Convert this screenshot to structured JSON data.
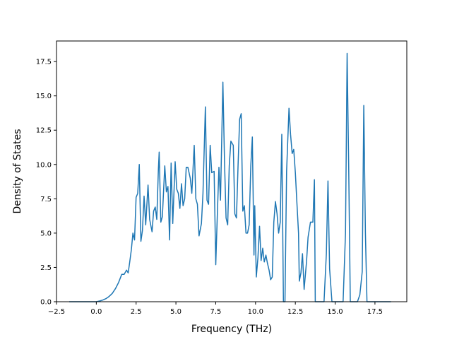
{
  "chart_data": {
    "type": "line",
    "title": "",
    "xlabel": "Frequency (THz)",
    "ylabel": "Density of States",
    "xlim": [
      -2.5,
      19.5
    ],
    "ylim": [
      0,
      19.0
    ],
    "grid": false,
    "x_ticks": [
      -2.5,
      0.0,
      2.5,
      5.0,
      7.5,
      10.0,
      12.5,
      15.0,
      17.5
    ],
    "x_tick_labels": [
      "−2.5",
      "0.0",
      "2.5",
      "5.0",
      "7.5",
      "10.0",
      "12.5",
      "15.0",
      "17.5"
    ],
    "y_ticks": [
      0.0,
      2.5,
      5.0,
      7.5,
      10.0,
      12.5,
      15.0,
      17.5
    ],
    "y_tick_labels": [
      "0.0",
      "2.5",
      "5.0",
      "7.5",
      "10.0",
      "12.5",
      "15.0",
      "17.5"
    ],
    "series": [
      {
        "color": "#1f77b4",
        "points": [
          [
            -1.7,
            0.0
          ],
          [
            -1.0,
            0.0
          ],
          [
            -0.5,
            0.0
          ],
          [
            0.0,
            0.0
          ],
          [
            0.2,
            0.05
          ],
          [
            0.4,
            0.12
          ],
          [
            0.6,
            0.22
          ],
          [
            0.8,
            0.38
          ],
          [
            1.0,
            0.6
          ],
          [
            1.2,
            0.95
          ],
          [
            1.4,
            1.4
          ],
          [
            1.6,
            2.0
          ],
          [
            1.75,
            2.0
          ],
          [
            1.9,
            2.3
          ],
          [
            2.0,
            2.1
          ],
          [
            2.1,
            2.9
          ],
          [
            2.2,
            3.8
          ],
          [
            2.3,
            5.0
          ],
          [
            2.4,
            4.5
          ],
          [
            2.5,
            7.6
          ],
          [
            2.6,
            7.9
          ],
          [
            2.7,
            10.0
          ],
          [
            2.8,
            4.4
          ],
          [
            2.9,
            5.2
          ],
          [
            3.0,
            7.7
          ],
          [
            3.1,
            5.6
          ],
          [
            3.25,
            8.5
          ],
          [
            3.35,
            6.0
          ],
          [
            3.5,
            5.1
          ],
          [
            3.6,
            6.6
          ],
          [
            3.7,
            6.9
          ],
          [
            3.8,
            6.0
          ],
          [
            3.9,
            9.7
          ],
          [
            3.95,
            10.9
          ],
          [
            4.05,
            5.8
          ],
          [
            4.15,
            6.2
          ],
          [
            4.3,
            9.9
          ],
          [
            4.4,
            8.0
          ],
          [
            4.5,
            8.4
          ],
          [
            4.6,
            4.5
          ],
          [
            4.7,
            10.1
          ],
          [
            4.8,
            5.7
          ],
          [
            4.95,
            10.2
          ],
          [
            5.05,
            8.2
          ],
          [
            5.15,
            7.9
          ],
          [
            5.25,
            6.8
          ],
          [
            5.35,
            8.6
          ],
          [
            5.45,
            7.0
          ],
          [
            5.55,
            7.5
          ],
          [
            5.65,
            9.8
          ],
          [
            5.75,
            9.8
          ],
          [
            5.9,
            9.0
          ],
          [
            6.0,
            7.9
          ],
          [
            6.15,
            11.4
          ],
          [
            6.25,
            7.5
          ],
          [
            6.35,
            7.1
          ],
          [
            6.45,
            4.8
          ],
          [
            6.6,
            5.7
          ],
          [
            6.7,
            7.9
          ],
          [
            6.85,
            14.2
          ],
          [
            6.95,
            7.4
          ],
          [
            7.05,
            7.1
          ],
          [
            7.15,
            11.4
          ],
          [
            7.25,
            9.4
          ],
          [
            7.4,
            9.5
          ],
          [
            7.5,
            2.7
          ],
          [
            7.6,
            6.3
          ],
          [
            7.7,
            9.8
          ],
          [
            7.8,
            7.4
          ],
          [
            7.95,
            16.0
          ],
          [
            8.05,
            10.2
          ],
          [
            8.15,
            6.1
          ],
          [
            8.25,
            5.6
          ],
          [
            8.35,
            9.9
          ],
          [
            8.45,
            11.7
          ],
          [
            8.6,
            11.4
          ],
          [
            8.7,
            6.4
          ],
          [
            8.8,
            6.1
          ],
          [
            8.9,
            9.8
          ],
          [
            9.0,
            13.3
          ],
          [
            9.1,
            13.7
          ],
          [
            9.2,
            6.6
          ],
          [
            9.3,
            7.0
          ],
          [
            9.4,
            5.0
          ],
          [
            9.5,
            5.0
          ],
          [
            9.6,
            5.6
          ],
          [
            9.7,
            9.9
          ],
          [
            9.8,
            12.0
          ],
          [
            9.9,
            3.4
          ],
          [
            9.95,
            7.0
          ],
          [
            10.05,
            1.8
          ],
          [
            10.15,
            3.2
          ],
          [
            10.25,
            5.5
          ],
          [
            10.35,
            3.0
          ],
          [
            10.45,
            3.9
          ],
          [
            10.55,
            2.9
          ],
          [
            10.65,
            3.4
          ],
          [
            10.75,
            2.8
          ],
          [
            10.85,
            2.3
          ],
          [
            10.95,
            1.6
          ],
          [
            11.05,
            1.8
          ],
          [
            11.15,
            5.8
          ],
          [
            11.25,
            7.3
          ],
          [
            11.35,
            6.4
          ],
          [
            11.45,
            5.0
          ],
          [
            11.55,
            5.8
          ],
          [
            11.65,
            12.2
          ],
          [
            11.75,
            0.0
          ],
          [
            11.85,
            0.0
          ],
          [
            11.95,
            9.5
          ],
          [
            12.1,
            14.1
          ],
          [
            12.2,
            12.2
          ],
          [
            12.3,
            10.8
          ],
          [
            12.4,
            11.1
          ],
          [
            12.5,
            9.4
          ],
          [
            12.6,
            7.2
          ],
          [
            12.7,
            5.0
          ],
          [
            12.75,
            1.5
          ],
          [
            12.85,
            2.1
          ],
          [
            12.95,
            3.5
          ],
          [
            13.05,
            0.9
          ],
          [
            13.2,
            2.9
          ],
          [
            13.3,
            4.7
          ],
          [
            13.45,
            5.8
          ],
          [
            13.6,
            5.8
          ],
          [
            13.7,
            8.9
          ],
          [
            13.75,
            0.0
          ],
          [
            14.1,
            0.0
          ],
          [
            14.3,
            0.0
          ],
          [
            14.45,
            3.5
          ],
          [
            14.55,
            8.8
          ],
          [
            14.65,
            2.4
          ],
          [
            14.8,
            0.0
          ],
          [
            15.5,
            0.0
          ],
          [
            15.65,
            5.0
          ],
          [
            15.75,
            18.1
          ],
          [
            15.85,
            10.0
          ],
          [
            15.95,
            0.0
          ],
          [
            16.4,
            0.0
          ],
          [
            16.55,
            0.5
          ],
          [
            16.7,
            2.2
          ],
          [
            16.8,
            14.3
          ],
          [
            16.9,
            5.0
          ],
          [
            17.0,
            0.0
          ],
          [
            17.5,
            0.0
          ],
          [
            18.0,
            0.0
          ],
          [
            18.5,
            0.0
          ]
        ]
      }
    ]
  }
}
